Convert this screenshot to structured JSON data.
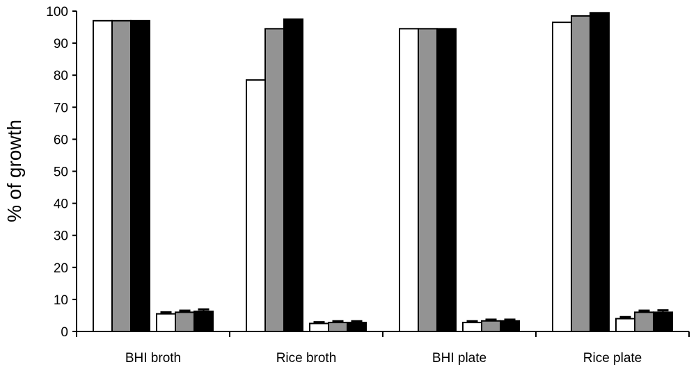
{
  "chart_data": {
    "type": "bar",
    "title": "",
    "xlabel": "",
    "ylabel": "% of growth",
    "ylim": [
      0,
      100
    ],
    "yticks": [
      0,
      10,
      20,
      30,
      40,
      50,
      60,
      70,
      80,
      90,
      100
    ],
    "grid": false,
    "legend": "none",
    "categories": [
      "BHI broth",
      "Rice broth",
      "BHI plate",
      "Rice plate"
    ],
    "groups_per_category": 2,
    "series_colors": [
      "#ffffff",
      "#939393",
      "#000000"
    ],
    "series": [
      {
        "values": [
          [
            97,
            5.5
          ],
          [
            78.5,
            2.5
          ],
          [
            94.5,
            2.8
          ],
          [
            96.5,
            4.0
          ]
        ],
        "errors": [
          [
            0,
            0.5
          ],
          [
            0,
            0.4
          ],
          [
            0,
            0.4
          ],
          [
            0,
            0.5
          ]
        ]
      },
      {
        "values": [
          [
            97,
            6.0
          ],
          [
            94.5,
            2.8
          ],
          [
            94.5,
            3.3
          ],
          [
            98.5,
            6.0
          ]
        ],
        "errors": [
          [
            0,
            0.5
          ],
          [
            0,
            0.4
          ],
          [
            0,
            0.4
          ],
          [
            0,
            0.5
          ]
        ]
      },
      {
        "values": [
          [
            97,
            6.3
          ],
          [
            97.5,
            2.8
          ],
          [
            94.5,
            3.3
          ],
          [
            99.5,
            6.0
          ]
        ],
        "errors": [
          [
            0,
            0.6
          ],
          [
            0,
            0.4
          ],
          [
            0,
            0.4
          ],
          [
            0,
            0.6
          ]
        ]
      }
    ]
  }
}
